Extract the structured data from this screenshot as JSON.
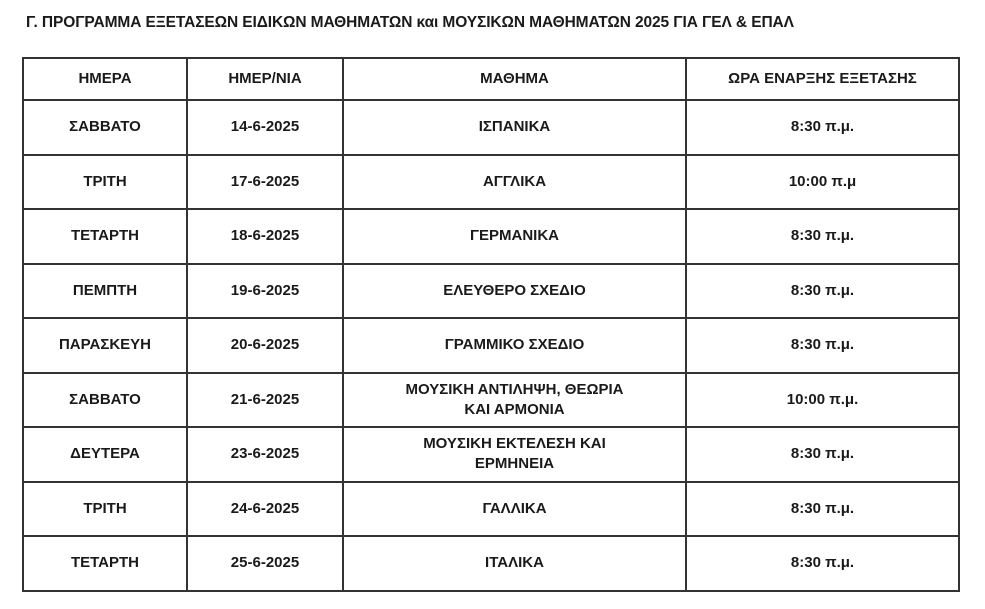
{
  "title": "Γ. ΠΡΟΓΡΑΜΜΑ ΕΞΕΤΑΣΕΩΝ ΕΙΔΙΚΩΝ ΜΑΘΗΜΑΤΩΝ και ΜΟΥΣΙΚΩΝ ΜΑΘΗΜΑΤΩΝ 2025 ΓΙΑ ΓΕΛ & ΕΠΑΛ",
  "table": {
    "headers": [
      "ΗΜΕΡΑ",
      "ΗΜΕΡ/ΝΙΑ",
      "ΜΑΘΗΜΑ",
      "ΩΡΑ ΕΝΑΡΞΗΣ ΕΞΕΤΑΣΗΣ"
    ],
    "rows": [
      [
        "ΣΑΒΒΑΤΟ",
        "14-6-2025",
        "ΙΣΠΑΝΙΚΑ",
        "8:30 π.μ."
      ],
      [
        "ΤΡΙΤΗ",
        "17-6-2025",
        "ΑΓΓΛΙΚΑ",
        "10:00 π.μ"
      ],
      [
        "ΤΕΤΑΡΤΗ",
        "18-6-2025",
        "ΓΕΡΜΑΝΙΚΑ",
        "8:30 π.μ."
      ],
      [
        "ΠΕΜΠΤΗ",
        "19-6-2025",
        "ΕΛΕΥΘΕΡΟ ΣΧΕΔΙΟ",
        "8:30 π.μ."
      ],
      [
        "ΠΑΡΑΣΚΕΥΗ",
        "20-6-2025",
        "ΓΡΑΜΜΙΚΟ ΣΧΕΔΙΟ",
        "8:30 π.μ."
      ],
      [
        "ΣΑΒΒΑΤΟ",
        "21-6-2025",
        "ΜΟΥΣΙΚΗ ΑΝΤΙΛΗΨΗ, ΘΕΩΡΙΑ ΚΑΙ ΑΡΜΟΝΙΑ",
        "10:00 π.μ."
      ],
      [
        "ΔΕΥΤΕΡΑ",
        "23-6-2025",
        "ΜΟΥΣΙΚΗ ΕΚΤΕΛΕΣΗ ΚΑΙ ΕΡΜΗΝΕΙΑ",
        "8:30 π.μ."
      ],
      [
        "ΤΡΙΤΗ",
        "24-6-2025",
        "ΓΑΛΛΙΚΑ",
        "8:30 π.μ."
      ],
      [
        "ΤΕΤΑΡΤΗ",
        "25-6-2025",
        "ΙΤΑΛΙΚΑ",
        "8:30 π.μ."
      ]
    ]
  }
}
